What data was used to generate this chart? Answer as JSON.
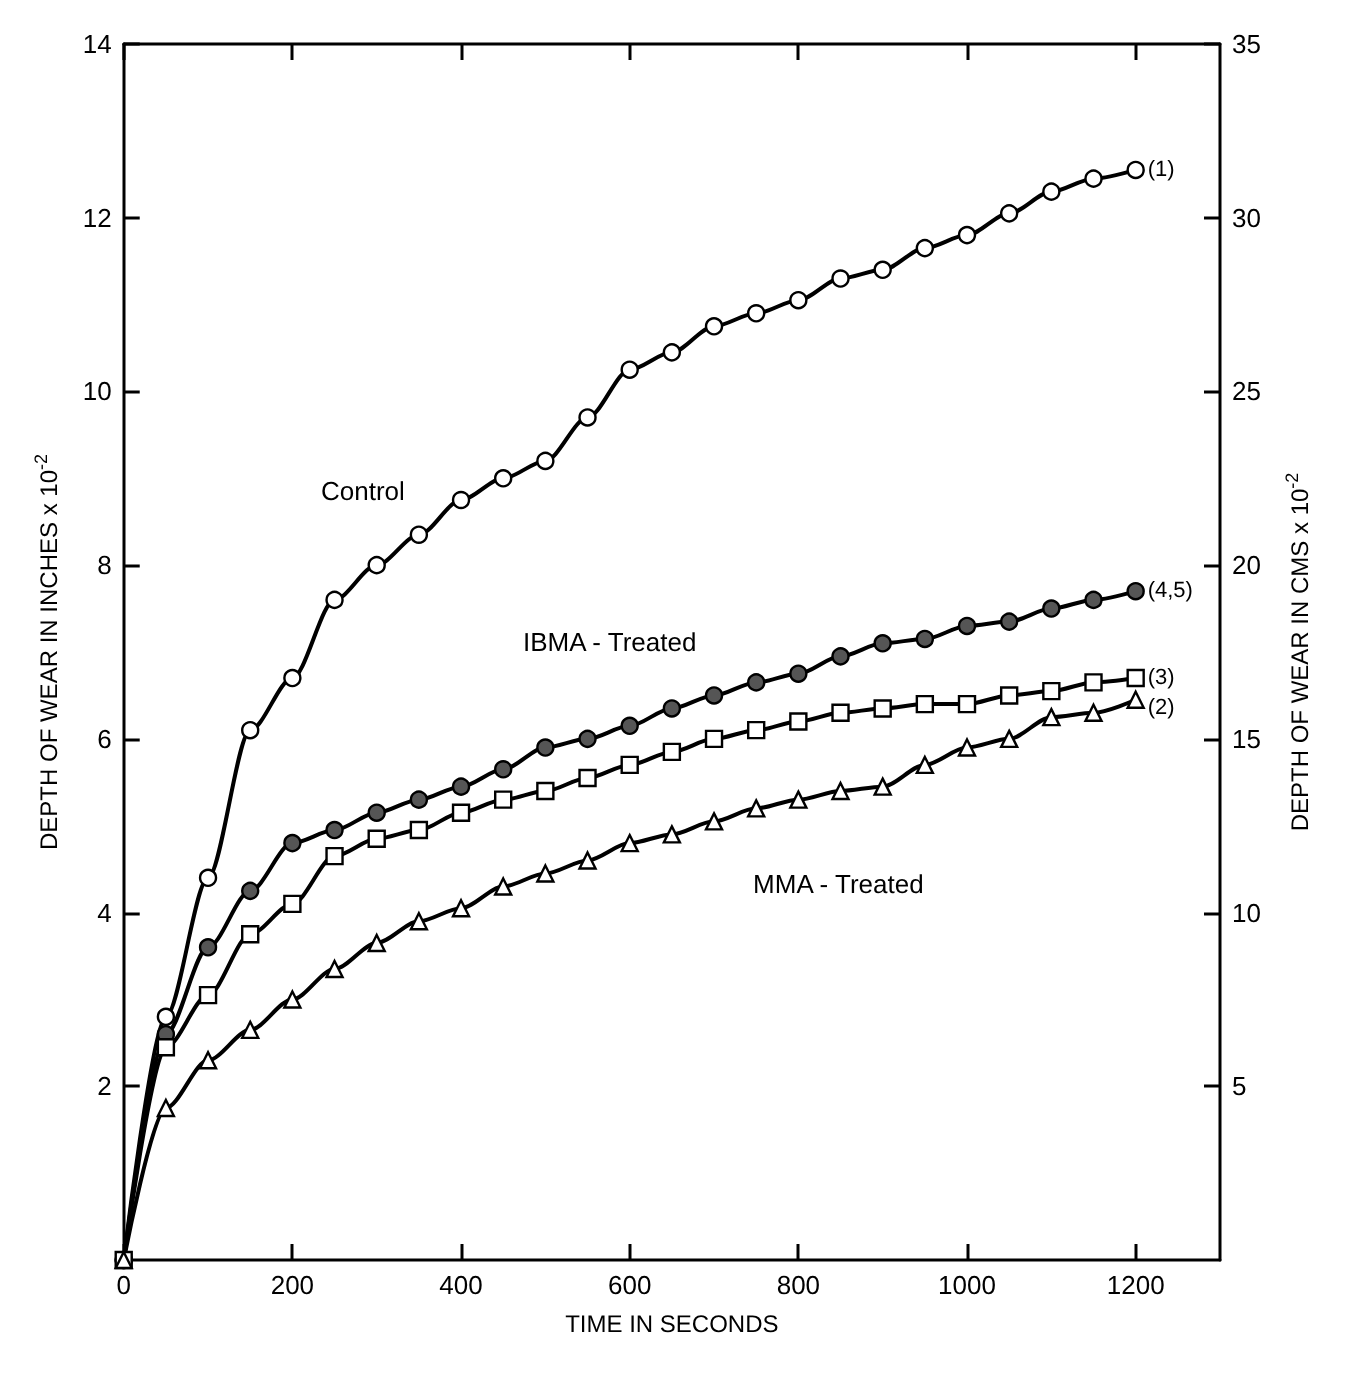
{
  "chart_data": {
    "type": "line",
    "xlabel": "TIME IN SECONDS",
    "ylabel": "DEPTH OF WEAR IN INCHES x 10$^{-2}$",
    "y2label": "DEPTH OF WEAR IN CMS x 10$^{-2}$",
    "x": [
      0,
      50,
      100,
      150,
      200,
      250,
      300,
      350,
      400,
      450,
      500,
      550,
      600,
      650,
      700,
      750,
      800,
      850,
      900,
      950,
      1000,
      1050,
      1100,
      1150,
      1200
    ],
    "series": [
      {
        "name": "Control",
        "color": "#000000",
        "marker": "circle",
        "values": [
          0,
          2.8,
          4.4,
          6.1,
          6.7,
          7.6,
          8.0,
          8.35,
          8.75,
          9.0,
          9.2,
          9.7,
          10.25,
          10.45,
          10.75,
          10.9,
          11.05,
          11.3,
          11.4,
          11.65,
          11.8,
          12.05,
          12.3,
          12.45,
          12.55
        ]
      },
      {
        "name": "IBMA - Treated",
        "color": "#555555",
        "marker": "circle",
        "values": [
          0,
          2.6,
          3.6,
          4.25,
          4.8,
          4.95,
          5.15,
          5.3,
          5.45,
          5.65,
          5.9,
          6.0,
          6.15,
          6.35,
          6.5,
          6.65,
          6.75,
          6.95,
          7.1,
          7.15,
          7.3,
          7.35,
          7.5,
          7.6,
          7.7
        ]
      },
      {
        "color": "#000000",
        "marker": "square",
        "values": [
          0,
          2.45,
          3.05,
          3.75,
          4.1,
          4.65,
          4.85,
          4.95,
          5.15,
          5.3,
          5.4,
          5.55,
          5.7,
          5.85,
          6.0,
          6.1,
          6.2,
          6.3,
          6.35,
          6.4,
          6.4,
          6.5,
          6.55,
          6.65,
          6.7
        ]
      },
      {
        "name": "MMA - Treated",
        "color": "#000000",
        "marker": "triangle",
        "values": [
          0,
          1.75,
          2.3,
          2.65,
          3.0,
          3.35,
          3.65,
          3.9,
          4.05,
          4.3,
          4.45,
          4.6,
          4.8,
          4.9,
          5.05,
          5.2,
          5.3,
          5.4,
          5.45,
          5.7,
          5.9,
          6.0,
          6.25,
          6.3,
          6.45
        ]
      }
    ],
    "annotations": [
      "(1)",
      "(4,5)",
      "(3)",
      "(2)"
    ],
    "xlim": [
      0,
      1300
    ],
    "xticks": [
      0,
      200,
      400,
      600,
      800,
      1000,
      1200
    ],
    "ylim": [
      0,
      14
    ],
    "yticks": [
      2,
      4,
      6,
      8,
      10,
      12,
      14
    ],
    "y2lim": [
      0,
      35
    ],
    "y2ticks": [
      5,
      10,
      15,
      20,
      25,
      30,
      35
    ],
    "grid": false,
    "legend": false
  }
}
